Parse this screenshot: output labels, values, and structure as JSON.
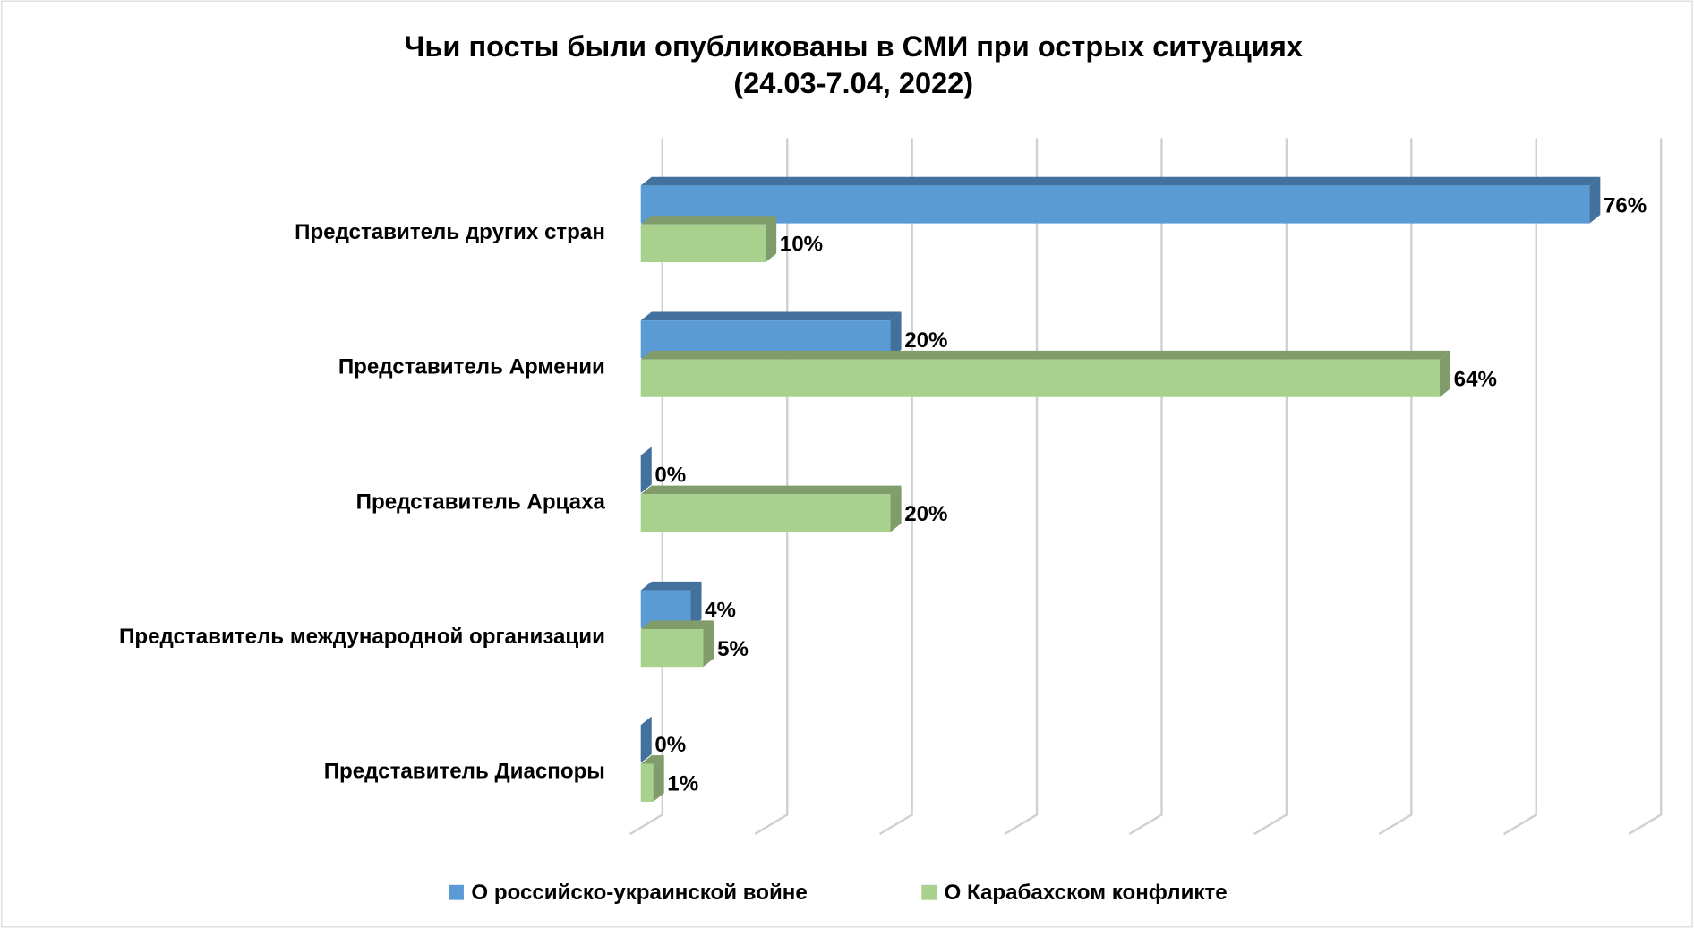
{
  "chart_data": {
    "type": "bar3d-horizontal",
    "title": "Чьи посты были опубликованы в СМИ при острых ситуациях",
    "subtitle": "(24.03-7.04, 2022)",
    "categories": [
      "Представитель других стран",
      "Представитель Армении",
      "Представитель Арцаха",
      "Представитель международной организации",
      "Представитель Диаспоры"
    ],
    "series": [
      {
        "name": "О российско-украинской войне",
        "color": "#5b9bd5",
        "side_color": "#41719c",
        "values": [
          76,
          20,
          0,
          4,
          0
        ],
        "value_labels": [
          "76%",
          "20%",
          "0%",
          "4%",
          "0%"
        ]
      },
      {
        "name": "О Карабахском конфликте",
        "color": "#a9d18e",
        "side_color": "#7f9c6a",
        "values": [
          10,
          64,
          20,
          5,
          1
        ],
        "value_labels": [
          "10%",
          "64%",
          "20%",
          "5%",
          "1%"
        ]
      }
    ],
    "xlim": [
      0,
      80
    ],
    "xticks": [
      0,
      10,
      20,
      30,
      40,
      50,
      60,
      70,
      80
    ],
    "grid": true,
    "legend": "bottom"
  }
}
